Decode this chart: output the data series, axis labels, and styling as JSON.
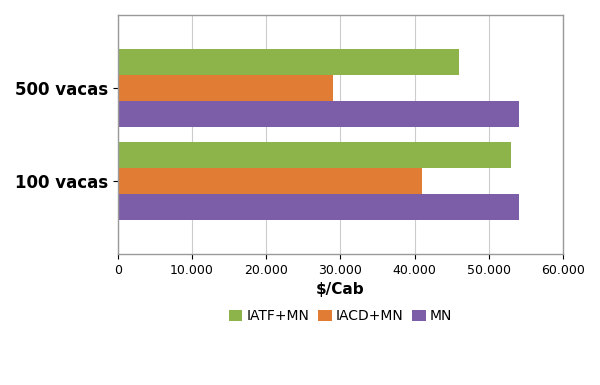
{
  "categories": [
    "100 vacas",
    "500 vacas"
  ],
  "series": {
    "IATF+MN": [
      53000,
      46000
    ],
    "IACD+MN": [
      41000,
      29000
    ],
    "MN": [
      54000,
      54000
    ]
  },
  "colors": {
    "IATF+MN": "#8DB44A",
    "IACD+MN": "#E07C34",
    "MN": "#7B5EA7"
  },
  "xlabel": "$/Cab",
  "xlim": [
    0,
    60000
  ],
  "xticks": [
    0,
    10000,
    20000,
    30000,
    40000,
    50000,
    60000
  ],
  "xtick_labels": [
    "0",
    "10.000",
    "20.000",
    "30.000",
    "40.000",
    "50.000",
    "60.000"
  ],
  "bar_height": 0.28,
  "legend_labels": [
    "IATF+MN",
    "IACD+MN",
    "MN"
  ],
  "grid_color": "#CCCCCC",
  "background_color": "#FFFFFF",
  "border_color": "#999999"
}
